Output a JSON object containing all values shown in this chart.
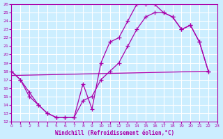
{
  "xlabel": "Windchill (Refroidissement éolien,°C)",
  "bg_color": "#cceeff",
  "grid_color": "#ffffff",
  "line_color": "#aa00aa",
  "xlim": [
    0,
    23
  ],
  "ylim": [
    12,
    26
  ],
  "xticks": [
    0,
    1,
    2,
    3,
    4,
    5,
    6,
    7,
    8,
    9,
    10,
    11,
    12,
    13,
    14,
    15,
    16,
    17,
    18,
    19,
    20,
    21,
    22,
    23
  ],
  "yticks": [
    12,
    13,
    14,
    15,
    16,
    17,
    18,
    19,
    20,
    21,
    22,
    23,
    24,
    25,
    26
  ],
  "line1_x": [
    0,
    1,
    2,
    3,
    4,
    5,
    6,
    7,
    8,
    9,
    10,
    11,
    12,
    13,
    14,
    15,
    16,
    17,
    18,
    19,
    20,
    21,
    22
  ],
  "line1_y": [
    18,
    17,
    15,
    14,
    13,
    12.5,
    12.5,
    12.5,
    16.5,
    13.5,
    19,
    21.5,
    22,
    24,
    26,
    26,
    26,
    25,
    24.5,
    23,
    23.5,
    21.5,
    18
  ],
  "line2_x": [
    0,
    1,
    2,
    3,
    4,
    5,
    6,
    7,
    8,
    9,
    10,
    11,
    12,
    13,
    14,
    15,
    16,
    17,
    18,
    19,
    20,
    21,
    22
  ],
  "line2_y": [
    18,
    17,
    15.5,
    14,
    13,
    12.5,
    12.5,
    12.5,
    14.5,
    15,
    17,
    18,
    19,
    21,
    23,
    24.5,
    25,
    25,
    24.5,
    23,
    23.5,
    21.5,
    18
  ],
  "line3_x": [
    0,
    22
  ],
  "line3_y": [
    17.5,
    18.0
  ]
}
